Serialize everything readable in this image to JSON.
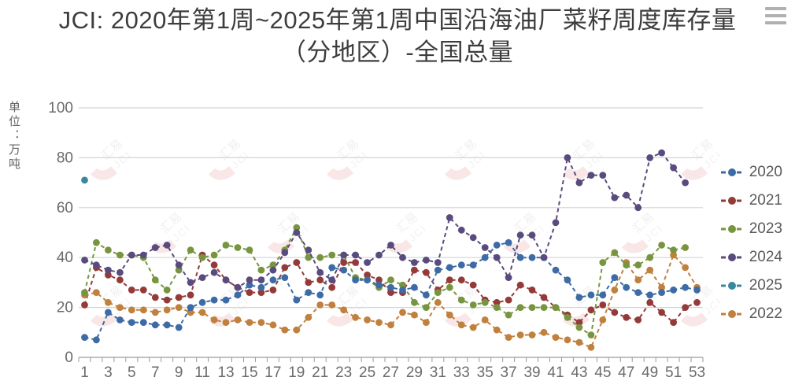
{
  "title": {
    "text": "JCI: 2020年第1周~2025年第1周中国沿海油厂菜籽周度库存量（分地区）-全国总量"
  },
  "toolbar": {
    "menu_icon": "hamburger-menu"
  },
  "y_axis": {
    "unit_label": "单位：万吨",
    "ticks": [
      0,
      20,
      40,
      60,
      80,
      100
    ]
  },
  "x_axis": {
    "tick_labels": [
      "1",
      "3",
      "5",
      "7",
      "9",
      "11",
      "13",
      "15",
      "17",
      "19",
      "21",
      "23",
      "25",
      "27",
      "29",
      "31",
      "33",
      "35",
      "37",
      "39",
      "41",
      "43",
      "45",
      "47",
      "49",
      "51",
      "53"
    ]
  },
  "watermark": {
    "text_cn": "汇易",
    "text_en": "JCI",
    "swoosh_color": "#c0392b"
  },
  "legend": {
    "order": [
      "2020",
      "2021",
      "2023",
      "2024",
      "2025",
      "2022"
    ],
    "position": "right"
  },
  "colors": {
    "grid": "#d4d4d4",
    "axis": "#9a9a9a",
    "tick_text": "#6b6b6b",
    "legend_text": "#595959",
    "title_text": "#3d3d3d"
  },
  "chart_data": {
    "type": "line",
    "line_style": "dashed",
    "marker": "circle",
    "grid": true,
    "legend_position": "right",
    "x_weeks": 53,
    "ylim": [
      0,
      100
    ],
    "y_ticks": [
      0,
      20,
      40,
      60,
      80,
      100
    ],
    "series": [
      {
        "name": "2020",
        "color": "#3d6ba5",
        "values": [
          8,
          7,
          18,
          15,
          14,
          14,
          13,
          13,
          12,
          20,
          22,
          23,
          23,
          25,
          29,
          28,
          31,
          32,
          23,
          26,
          25,
          36,
          35,
          31,
          31,
          29,
          28,
          27,
          28,
          25,
          35,
          36,
          37,
          37,
          40,
          45,
          46,
          40,
          40,
          40,
          35,
          31,
          24,
          25,
          25,
          32,
          28,
          26,
          25,
          26,
          27,
          28,
          27
        ]
      },
      {
        "name": "2021",
        "color": "#943a39",
        "values": [
          21,
          36,
          33,
          31,
          27,
          27,
          24,
          23,
          24,
          25,
          41,
          37,
          31,
          28,
          26,
          26,
          27,
          36,
          38,
          30,
          31,
          28,
          38,
          38,
          33,
          31,
          26,
          26,
          35,
          34,
          27,
          31,
          31,
          29,
          23,
          22,
          23,
          29,
          27,
          24,
          20,
          17,
          14,
          19,
          21,
          18,
          16,
          15,
          22,
          18,
          14,
          20,
          22
        ]
      },
      {
        "name": "2022",
        "color": "#c0803e",
        "values": [
          25,
          26,
          22,
          20,
          19,
          19,
          18,
          19,
          20,
          18,
          18,
          15,
          14,
          15,
          14,
          14,
          13,
          11,
          11,
          16,
          21,
          21,
          19,
          16,
          15,
          14,
          13,
          18,
          17,
          14,
          22,
          17,
          13,
          12,
          15,
          11,
          8,
          9,
          9,
          10,
          8,
          7,
          6,
          4,
          15,
          27,
          38,
          31,
          35,
          28,
          41,
          36,
          28
        ]
      },
      {
        "name": "2023",
        "color": "#77953f",
        "values": [
          26,
          46,
          43,
          41,
          41,
          40,
          31,
          27,
          35,
          43,
          40,
          41,
          45,
          44,
          43,
          35,
          37,
          43,
          52,
          40,
          40,
          41,
          41,
          32,
          31,
          28,
          31,
          29,
          22,
          20,
          26,
          28,
          23,
          21,
          22,
          20,
          17,
          20,
          20,
          20,
          20,
          16,
          12,
          9,
          38,
          42,
          37,
          37,
          40,
          45,
          43,
          44
        ]
      },
      {
        "name": "2024",
        "color": "#5a4b7f",
        "values": [
          39,
          37,
          35,
          34,
          41,
          41,
          44,
          45,
          37,
          30,
          32,
          34,
          31,
          28,
          31,
          31,
          35,
          42,
          50,
          43,
          34,
          31,
          41,
          41,
          38,
          41,
          45,
          40,
          38,
          39,
          38,
          56,
          51,
          48,
          44,
          40,
          32,
          49,
          49,
          40,
          54,
          80,
          70,
          73,
          73,
          64,
          65,
          60,
          80,
          82,
          76,
          70
        ]
      },
      {
        "name": "2025",
        "color": "#3a87a0",
        "values": [
          71
        ]
      }
    ]
  }
}
